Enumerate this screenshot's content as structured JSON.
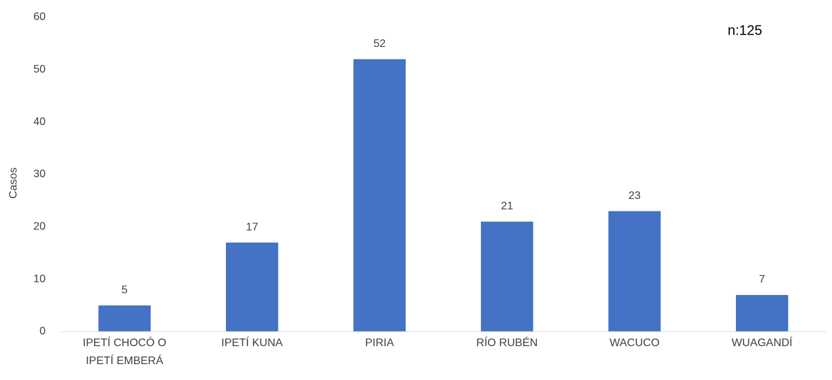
{
  "chart_data": {
    "type": "bar",
    "ylabel": "Casos",
    "annotation": "n:125",
    "categories": [
      "IPETÍ CHOCÓ O IPETÍ EMBERÁ",
      "IPETÍ KUNA",
      "PIRIA",
      "RÍO RUBÉN",
      "WACUCO",
      "WUAGANDÍ"
    ],
    "values": [
      5,
      17,
      52,
      21,
      23,
      7
    ],
    "color": "#4472c4",
    "ylim": [
      0,
      60
    ],
    "yticks": [
      0,
      10,
      20,
      30,
      40,
      50,
      60
    ],
    "grid": false
  }
}
